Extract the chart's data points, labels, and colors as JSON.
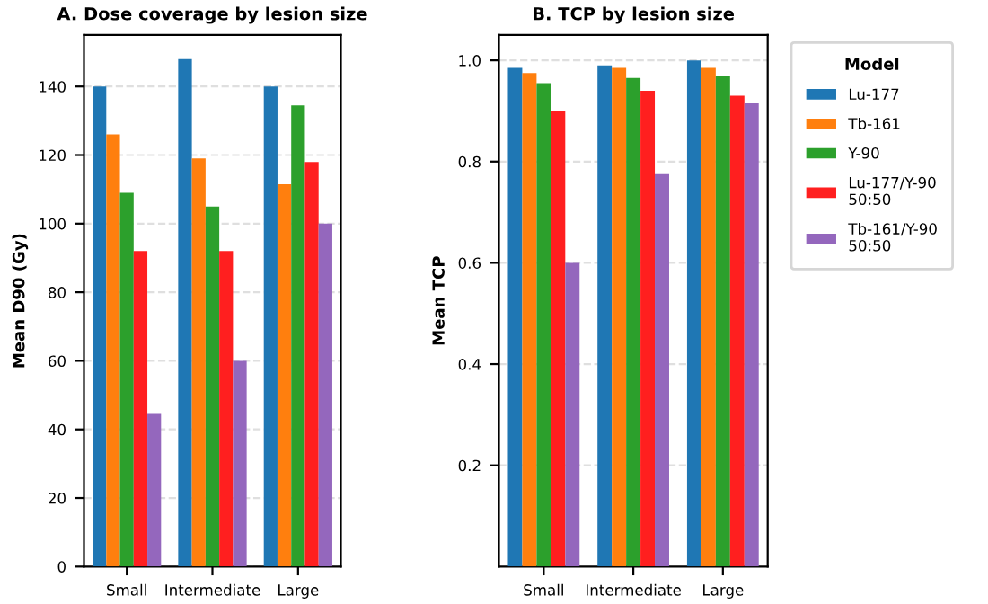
{
  "chart_data": [
    {
      "type": "bar",
      "title": "A. Dose coverage by lesion size",
      "ylabel": "Mean D90 (Gy)",
      "categories": [
        "Small",
        "Intermediate",
        "Large"
      ],
      "series": [
        {
          "color": "#1f77b4",
          "values": [
            140,
            148,
            140
          ]
        },
        {
          "color": "#ff7f0e",
          "values": [
            126,
            119,
            111.5
          ]
        },
        {
          "color": "#2ca02c",
          "values": [
            109,
            105,
            134.5
          ]
        },
        {
          "color": "#ff1f1f",
          "values": [
            92,
            92,
            118
          ]
        },
        {
          "color": "#9467bd",
          "values": [
            44.5,
            60,
            100
          ]
        }
      ],
      "ylim": [
        0,
        155
      ],
      "yticks": [
        0,
        20,
        40,
        60,
        80,
        100,
        120,
        140
      ],
      "grid": "y"
    },
    {
      "type": "bar",
      "title": "B. TCP by lesion size",
      "ylabel": "Mean TCP",
      "categories": [
        "Small",
        "Intermediate",
        "Large"
      ],
      "series": [
        {
          "name": "Lu-177",
          "color": "#1f77b4",
          "values": [
            0.985,
            0.99,
            1.0
          ]
        },
        {
          "name": "Tb-161",
          "color": "#ff7f0e",
          "values": [
            0.975,
            0.985,
            0.985
          ]
        },
        {
          "name": "Y-90",
          "color": "#2ca02c",
          "values": [
            0.955,
            0.965,
            0.97
          ]
        },
        {
          "name": "Lu-177/Y-90\n50:50",
          "color": "#ff1f1f",
          "values": [
            0.9,
            0.94,
            0.93
          ]
        },
        {
          "name": "Tb-161/Y-90\n50:50",
          "color": "#9467bd",
          "values": [
            0.6,
            0.775,
            0.915
          ]
        }
      ],
      "ylim": [
        0,
        1.05
      ],
      "yticks": [
        {
          "value": 0.2,
          "label": "0.2"
        },
        {
          "value": 0.4,
          "label": "0.4"
        },
        {
          "value": 0.6,
          "label": "0.6"
        },
        {
          "value": 0.8,
          "label": "0.8"
        },
        {
          "value": 1.0,
          "label": "1.0"
        }
      ],
      "grid": "y",
      "legend": "right",
      "legend_title": "Model"
    }
  ]
}
